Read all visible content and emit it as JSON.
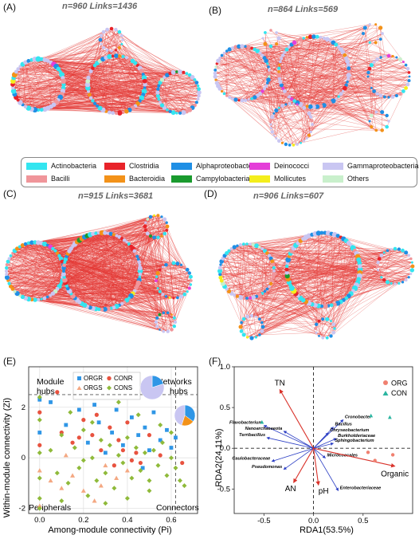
{
  "panels": {
    "A": {
      "letter": "(A)",
      "title": "n=960   Links=1436"
    },
    "B": {
      "letter": "(B)",
      "title": "n=864   Links=569"
    },
    "C": {
      "letter": "(C)",
      "title": "n=915   Links=3681"
    },
    "D": {
      "letter": "(D)",
      "title": "n=906   Links=607"
    },
    "E": {
      "letter": "(E)"
    },
    "F": {
      "letter": "(F)"
    }
  },
  "legend": [
    {
      "label": "Actinobacteria",
      "color": "#33e5f0"
    },
    {
      "label": "Clostridia",
      "color": "#e8232a"
    },
    {
      "label": "Alphaproteobacteria",
      "color": "#1f8fe5"
    },
    {
      "label": "Deinococci",
      "color": "#e43fd8"
    },
    {
      "label": "Gammaproteobacteria",
      "color": "#c9c6f2"
    },
    {
      "label": "Bacilli",
      "color": "#f0959a"
    },
    {
      "label": "Bacteroidia",
      "color": "#f39219"
    },
    {
      "label": "Campylobacteria",
      "color": "#1a9a2e"
    },
    {
      "label": "Mollicutes",
      "color": "#f4ee1c"
    },
    {
      "label": "Others",
      "color": "#c9f0cc"
    }
  ],
  "zipi": {
    "xlabel": "Among-module connectivity (Pi)",
    "ylabel": "Within-module connectivity (Zi)",
    "quadrants": {
      "module_hubs": "Module\nhubs",
      "network_hubs": "Networks\nhubs",
      "peripherals": "Peripherals",
      "connectors": "Connectors"
    },
    "series_legend": [
      "ORGR",
      "CONR",
      "ORGS",
      "CONS"
    ]
  },
  "rda": {
    "xlabel": "RDA1(53.5%)",
    "ylabel": "RDA2(24.11%)",
    "legend": [
      "ORG",
      "CON"
    ],
    "env_labels": [
      "TN",
      "AN",
      "pH",
      "Organic"
    ],
    "taxa_labels": [
      "Flavobacterium",
      "Nanoarchaeaeota",
      "Terribacillus",
      "Caulobacteraceae",
      "Pseudomonas",
      "Cronobacter",
      "Bacillus",
      "Chryseobacterium",
      "Burkholderiaceae",
      "Sphingobacterium",
      "Micrococcales",
      "Enterobacteriaceae"
    ]
  },
  "chart_data": [
    {
      "type": "scatter",
      "title": "",
      "xlabel": "Among-module connectivity (Pi)",
      "ylabel": "Within-module connectivity (Zi)",
      "xlim": [
        -0.05,
        0.72
      ],
      "ylim": [
        -2.2,
        3.6
      ],
      "x_ticks": [
        0.0,
        0.2,
        0.4,
        0.6
      ],
      "y_ticks": [
        -2,
        0,
        2
      ],
      "thresholds": {
        "x": 0.62,
        "y": 2.5
      },
      "grid": true,
      "legend_position": "top-center",
      "series": [
        {
          "name": "ORGR",
          "color": "#2f96e6",
          "marker": "square",
          "points": [
            [
              0.0,
              2.3
            ],
            [
              0.0,
              1.0
            ],
            [
              0.05,
              2.2
            ],
            [
              0.12,
              1.3
            ],
            [
              0.18,
              1.9
            ],
            [
              0.22,
              0.6
            ],
            [
              0.27,
              1.4
            ],
            [
              0.33,
              1.0
            ],
            [
              0.38,
              0.5
            ],
            [
              0.42,
              1.6
            ],
            [
              0.45,
              0.9
            ],
            [
              0.48,
              1.2
            ],
            [
              0.5,
              0.3
            ],
            [
              0.52,
              1.8
            ],
            [
              0.55,
              0.7
            ],
            [
              0.58,
              1.1
            ],
            [
              0.6,
              0.4
            ],
            [
              0.35,
              1.9
            ],
            [
              0.3,
              0.2
            ],
            [
              0.25,
              2.1
            ],
            [
              0.47,
              -0.4
            ],
            [
              0.62,
              0.8
            ]
          ]
        },
        {
          "name": "CONR",
          "color": "#e8523f",
          "marker": "circle",
          "points": [
            [
              0.0,
              1.8
            ],
            [
              0.0,
              0.5
            ],
            [
              0.08,
              2.6
            ],
            [
              0.1,
              1.0
            ],
            [
              0.15,
              0.6
            ],
            [
              0.2,
              1.5
            ],
            [
              0.24,
              0.9
            ],
            [
              0.28,
              0.3
            ],
            [
              0.32,
              1.2
            ],
            [
              0.36,
              0.7
            ],
            [
              0.4,
              1.4
            ],
            [
              0.44,
              0.2
            ],
            [
              0.46,
              -0.2
            ],
            [
              0.5,
              0.9
            ],
            [
              0.55,
              0.1
            ],
            [
              0.26,
              1.7
            ],
            [
              0.18,
              0.8
            ],
            [
              0.42,
              -0.1
            ],
            [
              0.34,
              -0.3
            ],
            [
              0.38,
              0.3
            ],
            [
              0.65,
              -0.2
            ]
          ]
        },
        {
          "name": "ORGS",
          "color": "#f4a882",
          "marker": "triangle",
          "points": [
            [
              0.0,
              -0.5
            ],
            [
              0.0,
              -1.9
            ],
            [
              0.05,
              -0.9
            ],
            [
              0.1,
              -1.2
            ],
            [
              0.15,
              -0.7
            ],
            [
              0.2,
              -1.3
            ],
            [
              0.25,
              -1.7
            ],
            [
              0.3,
              -0.3
            ],
            [
              0.35,
              -0.8
            ],
            [
              0.12,
              0.1
            ],
            [
              0.28,
              -1.1
            ],
            [
              0.4,
              -0.5
            ]
          ]
        },
        {
          "name": "CONS",
          "color": "#8fba3a",
          "marker": "diamond",
          "points": [
            [
              0.0,
              2.4
            ],
            [
              0.0,
              1.5
            ],
            [
              0.0,
              0.2
            ],
            [
              0.0,
              -0.8
            ],
            [
              0.0,
              -1.6
            ],
            [
              0.0,
              -2.0
            ],
            [
              0.05,
              0.3
            ],
            [
              0.08,
              -0.6
            ],
            [
              0.1,
              0.9
            ],
            [
              0.13,
              -1.0
            ],
            [
              0.16,
              0.4
            ],
            [
              0.18,
              -0.4
            ],
            [
              0.2,
              1.1
            ],
            [
              0.22,
              -1.5
            ],
            [
              0.24,
              0.0
            ],
            [
              0.26,
              -0.9
            ],
            [
              0.28,
              0.7
            ],
            [
              0.3,
              -0.6
            ],
            [
              0.32,
              0.5
            ],
            [
              0.34,
              -1.2
            ],
            [
              0.36,
              0.1
            ],
            [
              0.38,
              -0.2
            ],
            [
              0.4,
              0.8
            ],
            [
              0.42,
              -0.8
            ],
            [
              0.44,
              0.4
            ],
            [
              0.46,
              -0.5
            ],
            [
              0.48,
              0.2
            ],
            [
              0.5,
              -0.9
            ],
            [
              0.52,
              0.3
            ],
            [
              0.54,
              -0.3
            ],
            [
              0.56,
              0.6
            ],
            [
              0.58,
              -0.7
            ],
            [
              0.6,
              0.0
            ],
            [
              0.62,
              -0.4
            ],
            [
              0.64,
              -0.9
            ],
            [
              0.66,
              -1.1
            ],
            [
              0.14,
              1.8
            ],
            [
              0.24,
              1.4
            ],
            [
              0.36,
              2.2
            ],
            [
              0.45,
              1.7
            ],
            [
              0.55,
              1.3
            ],
            [
              0.3,
              -1.8
            ],
            [
              0.2,
              -0.1
            ],
            [
              0.1,
              -1.7
            ],
            [
              0.5,
              -1.3
            ],
            [
              0.6,
              1.0
            ],
            [
              0.4,
              -1.6
            ]
          ]
        }
      ],
      "pies": [
        {
          "slices": [
            {
              "label": "",
              "value": 0.2,
              "color": "#2f96e6"
            },
            {
              "label": "",
              "value": 0.8,
              "color": "#c9c6f2"
            }
          ]
        },
        {
          "slices": [
            {
              "label": "",
              "value": 0.35,
              "color": "#2f96e6"
            },
            {
              "label": "",
              "value": 0.2,
              "color": "#f39219"
            },
            {
              "label": "",
              "value": 0.45,
              "color": "#c9c6f2"
            }
          ]
        }
      ]
    },
    {
      "type": "scatter",
      "title": "",
      "xlabel": "RDA1(53.5%)",
      "ylabel": "RDA2(24.11%)",
      "xlim": [
        -0.8,
        1.0
      ],
      "ylim": [
        -0.8,
        1.0
      ],
      "x_ticks": [
        -0.5,
        0.0,
        0.5
      ],
      "y_ticks": [
        -0.5,
        0.0,
        0.5,
        1.0
      ],
      "legend_position": "top-right",
      "series": [
        {
          "name": "ORG",
          "color": "#f08070",
          "marker": "circle",
          "points": [
            [
              0.8,
              -0.08
            ],
            [
              0.55,
              -0.05
            ],
            [
              0.62,
              -0.15
            ]
          ]
        },
        {
          "name": "CON",
          "color": "#2ab5a0",
          "marker": "triangle",
          "points": [
            [
              -0.52,
              0.32
            ],
            [
              0.58,
              0.4
            ],
            [
              0.77,
              0.38
            ]
          ]
        }
      ],
      "env_arrows": [
        {
          "label": "TN",
          "x": -0.34,
          "y": 0.72
        },
        {
          "label": "AN",
          "x": -0.2,
          "y": -0.42
        },
        {
          "label": "pH",
          "x": 0.05,
          "y": -0.45
        },
        {
          "label": "Organic",
          "x": 0.82,
          "y": -0.22
        }
      ],
      "taxa_arrows": [
        {
          "label": "Flavobacterium",
          "x": -0.5,
          "y": 0.28
        },
        {
          "label": "Nanoarchaeaeota",
          "x": -0.3,
          "y": 0.21
        },
        {
          "label": "Terribacillus",
          "x": -0.47,
          "y": 0.13
        },
        {
          "label": "Caulobacteraceae",
          "x": -0.42,
          "y": -0.16
        },
        {
          "label": "Pseudomonas",
          "x": -0.3,
          "y": -0.26
        },
        {
          "label": "Cronobacter",
          "x": 0.3,
          "y": 0.35
        },
        {
          "label": "Bacillus",
          "x": 0.2,
          "y": 0.26
        },
        {
          "label": "Chryseobacterium",
          "x": 0.15,
          "y": 0.19
        },
        {
          "label": "Burkholderiaceae",
          "x": 0.23,
          "y": 0.12
        },
        {
          "label": "Sphingobacterium",
          "x": 0.2,
          "y": 0.06
        },
        {
          "label": "Micrococcales",
          "x": 0.12,
          "y": -0.12
        },
        {
          "label": "Enterobacteriaceae",
          "x": 0.25,
          "y": -0.52
        }
      ]
    }
  ]
}
